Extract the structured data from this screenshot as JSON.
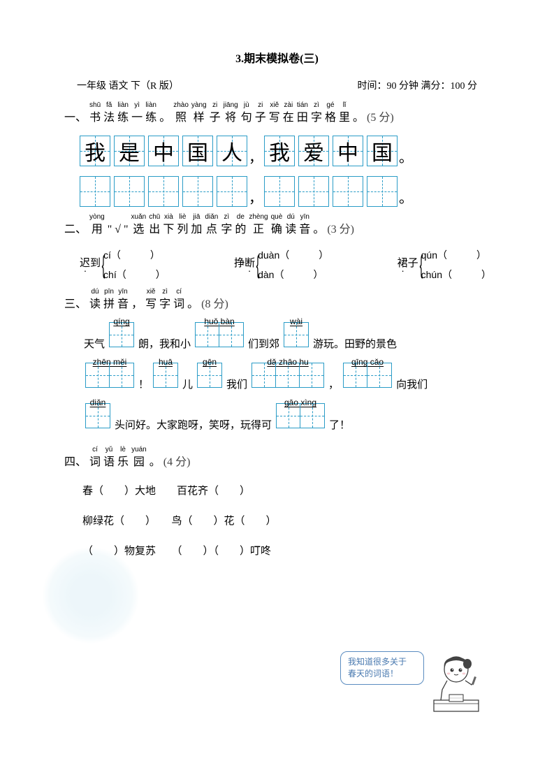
{
  "title": "3.期末模拟卷(三)",
  "subheader": {
    "left": "一年级 语文 下（R 版）",
    "right": "时间：90 分钟 满分：100 分"
  },
  "q1": {
    "number": "一、",
    "ruby": [
      {
        "py": "shū",
        "ch": "书"
      },
      {
        "py": "fǎ",
        "ch": "法"
      },
      {
        "py": "liàn",
        "ch": "练"
      },
      {
        "py": "yì",
        "ch": "一"
      },
      {
        "py": "liàn",
        "ch": "练"
      },
      {
        "py": "",
        "ch": "。"
      },
      {
        "py": "zhào",
        "ch": "照"
      },
      {
        "py": "yàng",
        "ch": "样"
      },
      {
        "py": "zi",
        "ch": "子"
      },
      {
        "py": "jiāng",
        "ch": "将"
      },
      {
        "py": "jù",
        "ch": "句"
      },
      {
        "py": "zi",
        "ch": "子"
      },
      {
        "py": "xiě",
        "ch": "写"
      },
      {
        "py": "zài",
        "ch": "在"
      },
      {
        "py": "tián",
        "ch": "田"
      },
      {
        "py": "zì",
        "ch": "字"
      },
      {
        "py": "gé",
        "ch": "格"
      },
      {
        "py": "lǐ",
        "ch": "里"
      },
      {
        "py": "",
        "ch": "。"
      }
    ],
    "score": "(5 分)",
    "example_chars": [
      "我",
      "是",
      "中",
      "国",
      "人",
      "，",
      "我",
      "爱",
      "中",
      "国",
      "。"
    ],
    "blank_count": 11
  },
  "q2": {
    "number": "二、",
    "ruby": [
      {
        "py": "yòng",
        "ch": "用"
      },
      {
        "py": "",
        "ch": "\""
      },
      {
        "py": "",
        "ch": "√"
      },
      {
        "py": "",
        "ch": "\""
      },
      {
        "py": "xuǎn",
        "ch": "选"
      },
      {
        "py": "chū",
        "ch": "出"
      },
      {
        "py": "xià",
        "ch": "下"
      },
      {
        "py": "liè",
        "ch": "列"
      },
      {
        "py": "jiā",
        "ch": "加"
      },
      {
        "py": "diǎn",
        "ch": "点"
      },
      {
        "py": "zì",
        "ch": "字"
      },
      {
        "py": "de",
        "ch": "的"
      },
      {
        "py": "zhèng",
        "ch": "正"
      },
      {
        "py": "què",
        "ch": "确"
      },
      {
        "py": "dú",
        "ch": "读"
      },
      {
        "py": "yīn",
        "ch": "音"
      },
      {
        "py": "",
        "ch": "。"
      }
    ],
    "score": "(3 分)",
    "groups": [
      {
        "word": "迟到",
        "underline_idx": 0,
        "opts": [
          "cí",
          "chí"
        ]
      },
      {
        "word": "挣断",
        "underline_idx": 1,
        "opts": [
          "duàn",
          "dàn"
        ]
      },
      {
        "word": "裙子",
        "underline_idx": 0,
        "opts": [
          "qún",
          "chún"
        ]
      }
    ]
  },
  "q3": {
    "number": "三、",
    "ruby": [
      {
        "py": "dú",
        "ch": "读"
      },
      {
        "py": "pīn",
        "ch": "拼"
      },
      {
        "py": "yīn",
        "ch": "音"
      },
      {
        "py": "",
        "ch": "，"
      },
      {
        "py": "xiě",
        "ch": "写"
      },
      {
        "py": "zì",
        "ch": "字"
      },
      {
        "py": "cí",
        "ch": "词"
      },
      {
        "py": "",
        "ch": "。"
      }
    ],
    "score": "(8 分)",
    "line1": {
      "pre": "天气",
      "b1": {
        "py": [
          "qíng"
        ],
        "n": 1
      },
      "m1": "朗，我和小",
      "b2": {
        "py": [
          "huǒ",
          "bàn"
        ],
        "n": 2
      },
      "m2": "们到郊",
      "b3": {
        "py": [
          "wài"
        ],
        "n": 1
      },
      "post": "游玩。田野的景色"
    },
    "line2": {
      "b1": {
        "py": [
          "zhēn",
          "měi"
        ],
        "n": 2
      },
      "m1": "！",
      "b2": {
        "py": [
          "huā"
        ],
        "n": 1
      },
      "m2": "儿",
      "b3": {
        "py": [
          "gēn"
        ],
        "n": 1
      },
      "m3": "我们",
      "b4": {
        "py": [
          "dǎ",
          "zhāo",
          "hu"
        ],
        "n": 3
      },
      "m4": "，",
      "b5": {
        "py": [
          "qīng",
          "cǎo"
        ],
        "n": 2
      },
      "post": "向我们"
    },
    "line3": {
      "b1": {
        "py": [
          "diǎn"
        ],
        "n": 1
      },
      "m1": "头问好。大家跑呀，笑呀，玩得可",
      "b2": {
        "py": [
          "gāo",
          "xìng"
        ],
        "n": 2
      },
      "post": "了！"
    }
  },
  "q4": {
    "number": "四、",
    "ruby": [
      {
        "py": "cí",
        "ch": "词"
      },
      {
        "py": "yǔ",
        "ch": "语"
      },
      {
        "py": "lè",
        "ch": "乐"
      },
      {
        "py": "yuán",
        "ch": "园"
      },
      {
        "py": "",
        "ch": "。"
      }
    ],
    "score": "(4 分)",
    "rows": [
      "春（　　）大地　　百花齐（　　）",
      "柳绿花（　　）　　鸟（　　）花（　　）",
      "（　　）物复苏　　（　　）（　　）叮咚"
    ],
    "speech": "我知道很多关于\n春天的词语！"
  },
  "colors": {
    "tian_border": "#2a9cc7",
    "speech_border": "#5a8cc0",
    "speech_text": "#4a7ab0"
  }
}
